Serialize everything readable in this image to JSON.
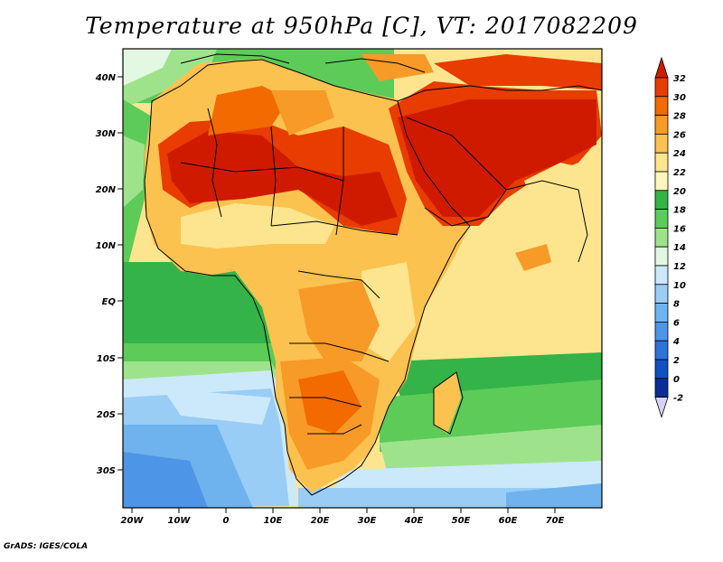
{
  "title": "Temperature at 950hPa [C], VT: 2017082209",
  "credit": "GrADS: IGES/COLA",
  "map": {
    "lat_ticks": [
      "40N",
      "30N",
      "20N",
      "10N",
      "EQ",
      "10S",
      "20S",
      "30S"
    ],
    "lon_ticks": [
      "20W",
      "10W",
      "0",
      "10E",
      "20E",
      "30E",
      "40E",
      "50E",
      "60E",
      "70E"
    ]
  },
  "colorbar": {
    "labels": [
      "32",
      "30",
      "28",
      "26",
      "24",
      "22",
      "20",
      "18",
      "16",
      "14",
      "12",
      "10",
      "8",
      "6",
      "4",
      "2",
      "0",
      "-2"
    ],
    "colors": [
      "#d01a00",
      "#e83c00",
      "#f36a00",
      "#f79a28",
      "#fbc24f",
      "#fde58f",
      "#fff6bd",
      "#34b348",
      "#5ccb58",
      "#9ee38c",
      "#e2f8e2",
      "#cce9fb",
      "#99cdf5",
      "#6eb3ee",
      "#4d95e6",
      "#2e73d7",
      "#1150c0",
      "#0a2d96",
      "#050e5c"
    ]
  },
  "legend_colors": {
    "hot": "#d01a00",
    "warm": "#f79a28",
    "mild": "#fde58f",
    "cool_green": "#34b348",
    "cold": "#6eb3ee",
    "lower_arrow": "#d9d2f7"
  }
}
